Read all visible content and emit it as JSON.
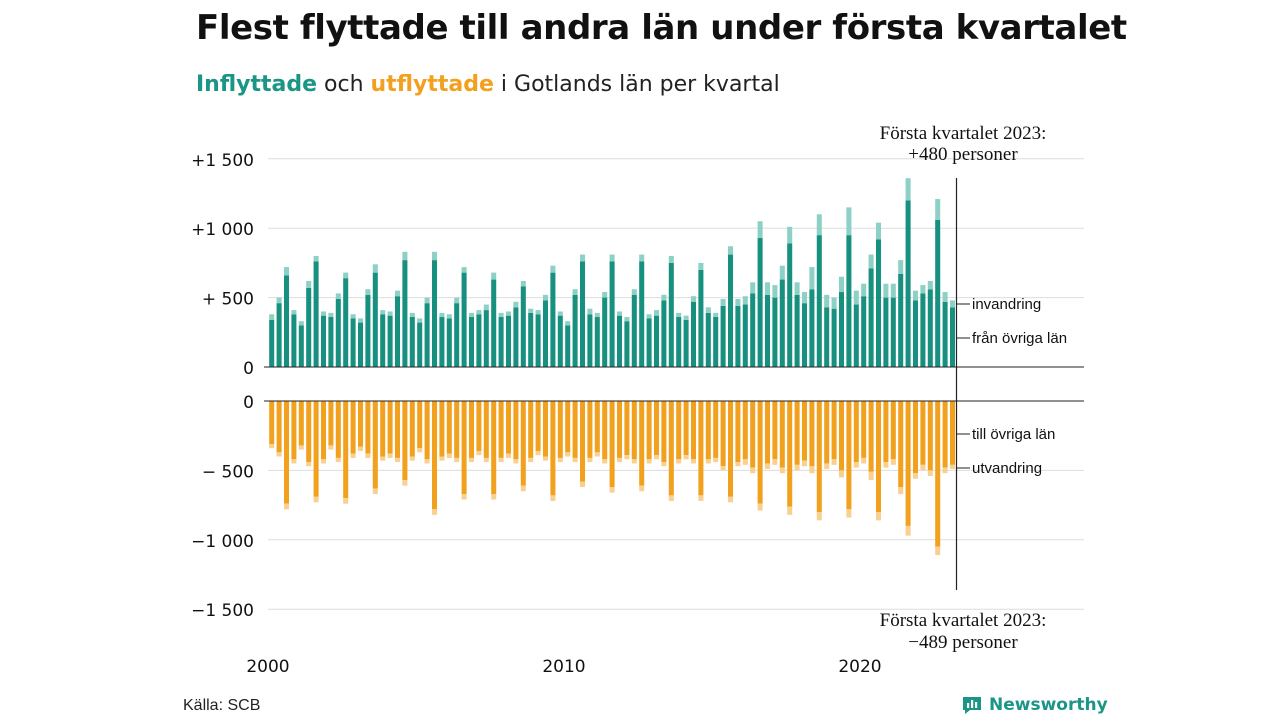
{
  "title": "Flest flyttade till andra län under första kvartalet",
  "subtitle": {
    "in_word": "Inflyttade",
    "and_word": "och",
    "out_word": "utflyttade",
    "rest": "i Gotlands län per kvartal"
  },
  "source": "Källa: SCB",
  "brand": "Newsworthy",
  "colors": {
    "in_domestic": "#17907f",
    "in_immigration": "#8dd0c6",
    "out_domestic": "#f2a11f",
    "out_emigration": "#f8d08f",
    "grid": "#dddddd",
    "accent": "#1a9586"
  },
  "chart_data": {
    "type": "bar",
    "x_ticks": [
      {
        "label": "2000",
        "year": 2000
      },
      {
        "label": "2010",
        "year": 2010
      },
      {
        "label": "2020",
        "year": 2020
      }
    ],
    "top_axis": {
      "ylim": [
        0,
        1500
      ],
      "ticks": [
        {
          "value": 0,
          "label": "0"
        },
        {
          "value": 500,
          "label": "+  500"
        },
        {
          "value": 1000,
          "label": "+1 000"
        },
        {
          "value": 1500,
          "label": "+1 500"
        }
      ]
    },
    "bottom_axis": {
      "ylim": [
        -1500,
        0
      ],
      "ticks": [
        {
          "value": 0,
          "label": "0"
        },
        {
          "value": -500,
          "label": "−  500"
        },
        {
          "value": -1000,
          "label": "−1 000"
        },
        {
          "value": -1500,
          "label": "−1 500"
        }
      ]
    },
    "series_labels": {
      "immigration": "invandring",
      "in_domestic": "från övriga län",
      "out_domestic": "till övriga län",
      "emigration": "utvandring"
    },
    "annotation_top": [
      "Första kvartalet 2023:",
      "+480 personer"
    ],
    "annotation_bottom": [
      "Första kvartalet 2023:",
      "−489 personer"
    ],
    "periods_start": "2000 Q1",
    "in_domestic": [
      340,
      460,
      660,
      380,
      300,
      570,
      760,
      370,
      360,
      490,
      640,
      350,
      320,
      520,
      680,
      380,
      370,
      510,
      770,
      360,
      320,
      460,
      770,
      360,
      350,
      460,
      680,
      360,
      380,
      410,
      630,
      360,
      370,
      430,
      580,
      390,
      380,
      480,
      680,
      370,
      300,
      520,
      760,
      380,
      360,
      500,
      760,
      370,
      330,
      520,
      760,
      350,
      370,
      480,
      750,
      360,
      340,
      470,
      700,
      390,
      360,
      440,
      810,
      440,
      450,
      530,
      930,
      520,
      500,
      630,
      890,
      520,
      460,
      560,
      950,
      430,
      420,
      540,
      950,
      450,
      510,
      710,
      920,
      500,
      500,
      670,
      1200,
      480,
      530,
      560,
      1060,
      470,
      430
    ],
    "in_immigration": [
      40,
      40,
      60,
      30,
      30,
      50,
      40,
      30,
      30,
      40,
      40,
      30,
      30,
      40,
      60,
      30,
      30,
      40,
      60,
      30,
      30,
      40,
      60,
      30,
      30,
      40,
      40,
      30,
      30,
      40,
      50,
      30,
      30,
      40,
      40,
      30,
      30,
      40,
      50,
      30,
      30,
      40,
      50,
      40,
      30,
      40,
      50,
      30,
      30,
      40,
      50,
      30,
      40,
      40,
      50,
      30,
      30,
      40,
      50,
      40,
      30,
      50,
      60,
      50,
      60,
      80,
      120,
      90,
      90,
      100,
      120,
      90,
      80,
      160,
      150,
      90,
      80,
      110,
      200,
      100,
      90,
      100,
      120,
      100,
      100,
      100,
      160,
      70,
      60,
      60,
      150,
      70,
      50
    ],
    "out_domestic": [
      310,
      370,
      740,
      420,
      320,
      440,
      690,
      420,
      320,
      410,
      700,
      380,
      330,
      380,
      630,
      400,
      380,
      410,
      570,
      400,
      340,
      420,
      780,
      400,
      380,
      410,
      670,
      410,
      360,
      410,
      670,
      410,
      380,
      420,
      610,
      410,
      360,
      400,
      680,
      410,
      370,
      410,
      580,
      410,
      370,
      420,
      620,
      410,
      390,
      420,
      610,
      420,
      390,
      440,
      680,
      420,
      390,
      420,
      680,
      420,
      410,
      470,
      690,
      440,
      420,
      480,
      740,
      450,
      420,
      480,
      760,
      460,
      430,
      470,
      800,
      450,
      420,
      500,
      780,
      440,
      410,
      510,
      800,
      440,
      420,
      620,
      900,
      520,
      460,
      500,
      1050,
      480,
      460
    ],
    "out_emigration": [
      30,
      30,
      40,
      30,
      30,
      30,
      40,
      30,
      30,
      30,
      40,
      30,
      30,
      30,
      40,
      30,
      30,
      30,
      40,
      30,
      30,
      30,
      40,
      30,
      30,
      30,
      40,
      30,
      30,
      30,
      40,
      30,
      30,
      30,
      40,
      30,
      30,
      30,
      40,
      30,
      30,
      30,
      40,
      30,
      30,
      30,
      40,
      30,
      30,
      30,
      40,
      30,
      30,
      30,
      40,
      30,
      30,
      30,
      40,
      30,
      30,
      30,
      40,
      30,
      40,
      40,
      50,
      40,
      40,
      40,
      60,
      40,
      40,
      50,
      60,
      40,
      40,
      50,
      60,
      40,
      40,
      60,
      60,
      40,
      40,
      50,
      70,
      40,
      40,
      40,
      60,
      40,
      30
    ]
  }
}
